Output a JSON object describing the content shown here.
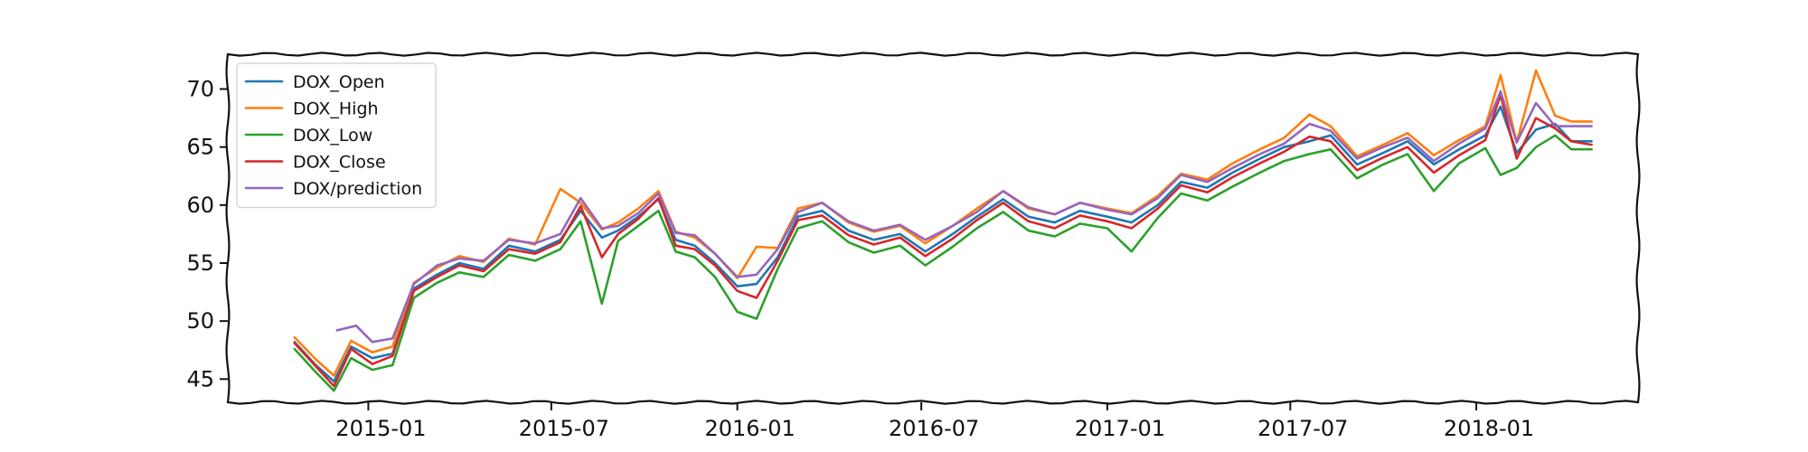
{
  "chart_data": {
    "type": "line",
    "title": "",
    "xlabel": "",
    "ylabel": "",
    "xlim": [
      "2014-08-15",
      "2018-06-10"
    ],
    "ylim": [
      43,
      73
    ],
    "grid": false,
    "legend_position": "top-left",
    "x_ticks": [
      "2015-01",
      "2015-07",
      "2016-01",
      "2016-07",
      "2017-01",
      "2017-07",
      "2018-01"
    ],
    "y_ticks": [
      45,
      50,
      55,
      60,
      65,
      70
    ],
    "series": [
      {
        "name": "DOX_Open",
        "color": "#1f77b4",
        "x": [
          "2014-10-20",
          "2014-11-10",
          "2014-11-28",
          "2014-12-15",
          "2015-01-05",
          "2015-01-25",
          "2015-02-15",
          "2015-03-10",
          "2015-04-01",
          "2015-04-25",
          "2015-05-20",
          "2015-06-15",
          "2015-07-10",
          "2015-07-30",
          "2015-08-20",
          "2015-09-05",
          "2015-09-25",
          "2015-10-15",
          "2015-11-01",
          "2015-11-20",
          "2015-12-10",
          "2016-01-01",
          "2016-01-20",
          "2016-02-10",
          "2016-03-01",
          "2016-03-25",
          "2016-04-20",
          "2016-05-15",
          "2016-06-10",
          "2016-07-05",
          "2016-08-01",
          "2016-08-25",
          "2016-09-20",
          "2016-10-15",
          "2016-11-10",
          "2016-12-05",
          "2017-01-01",
          "2017-01-25",
          "2017-02-20",
          "2017-03-15",
          "2017-04-10",
          "2017-05-05",
          "2017-06-01",
          "2017-06-25",
          "2017-07-20",
          "2017-08-10",
          "2017-09-05",
          "2017-10-01",
          "2017-10-25",
          "2017-11-20",
          "2017-12-15",
          "2018-01-10",
          "2018-01-25",
          "2018-02-10",
          "2018-03-01",
          "2018-03-20",
          "2018-04-05",
          "2018-04-25"
        ],
        "y": [
          48.2,
          46.2,
          44.8,
          47.8,
          46.8,
          47.2,
          52.8,
          54.0,
          55.0,
          54.5,
          56.5,
          56.0,
          57.0,
          59.5,
          57.2,
          57.8,
          59.0,
          60.5,
          57.0,
          56.5,
          55.0,
          53.0,
          53.2,
          55.5,
          59.0,
          59.5,
          57.8,
          57.0,
          57.5,
          56.0,
          57.5,
          59.0,
          60.5,
          59.0,
          58.5,
          59.5,
          59.0,
          58.5,
          60.0,
          62.0,
          61.5,
          62.8,
          64.0,
          65.0,
          65.5,
          66.0,
          63.5,
          64.5,
          65.5,
          63.5,
          64.8,
          66.0,
          68.5,
          64.5,
          66.5,
          67.0,
          65.5,
          65.5
        ]
      },
      {
        "name": "DOX_High",
        "color": "#ff7f0e",
        "x": [
          "2014-10-20",
          "2014-11-10",
          "2014-11-28",
          "2014-12-15",
          "2015-01-05",
          "2015-01-25",
          "2015-02-15",
          "2015-03-10",
          "2015-04-01",
          "2015-04-25",
          "2015-05-20",
          "2015-06-15",
          "2015-07-10",
          "2015-07-30",
          "2015-08-20",
          "2015-09-05",
          "2015-09-25",
          "2015-10-15",
          "2015-11-01",
          "2015-11-20",
          "2015-12-10",
          "2016-01-01",
          "2016-01-20",
          "2016-02-10",
          "2016-03-01",
          "2016-03-25",
          "2016-04-20",
          "2016-05-15",
          "2016-06-10",
          "2016-07-05",
          "2016-08-01",
          "2016-08-25",
          "2016-09-20",
          "2016-10-15",
          "2016-11-10",
          "2016-12-05",
          "2017-01-01",
          "2017-01-25",
          "2017-02-20",
          "2017-03-15",
          "2017-04-10",
          "2017-05-05",
          "2017-06-01",
          "2017-06-25",
          "2017-07-20",
          "2017-08-10",
          "2017-09-05",
          "2017-10-01",
          "2017-10-25",
          "2017-11-20",
          "2017-12-15",
          "2018-01-10",
          "2018-01-25",
          "2018-02-10",
          "2018-03-01",
          "2018-03-20",
          "2018-04-05",
          "2018-04-25"
        ],
        "y": [
          48.6,
          46.7,
          45.3,
          48.3,
          47.3,
          47.8,
          53.3,
          54.6,
          55.6,
          55.1,
          57.1,
          56.6,
          61.4,
          60.2,
          57.9,
          58.5,
          59.7,
          61.2,
          57.7,
          57.2,
          55.8,
          53.7,
          56.4,
          56.3,
          59.7,
          60.2,
          58.5,
          57.7,
          58.2,
          56.7,
          58.2,
          59.7,
          61.2,
          59.7,
          59.2,
          60.2,
          59.7,
          59.3,
          60.8,
          62.7,
          62.2,
          63.6,
          64.8,
          65.8,
          67.8,
          66.8,
          64.2,
          65.2,
          66.2,
          64.3,
          65.6,
          66.8,
          71.2,
          65.4,
          71.6,
          67.7,
          67.2,
          67.2
        ]
      },
      {
        "name": "DOX_Low",
        "color": "#2ca02c",
        "x": [
          "2014-10-20",
          "2014-11-10",
          "2014-11-28",
          "2014-12-15",
          "2015-01-05",
          "2015-01-25",
          "2015-02-15",
          "2015-03-10",
          "2015-04-01",
          "2015-04-25",
          "2015-05-20",
          "2015-06-15",
          "2015-07-10",
          "2015-07-30",
          "2015-08-20",
          "2015-09-05",
          "2015-09-25",
          "2015-10-15",
          "2015-11-01",
          "2015-11-20",
          "2015-12-10",
          "2016-01-01",
          "2016-01-20",
          "2016-02-10",
          "2016-03-01",
          "2016-03-25",
          "2016-04-20",
          "2016-05-15",
          "2016-06-10",
          "2016-07-05",
          "2016-08-01",
          "2016-08-25",
          "2016-09-20",
          "2016-10-15",
          "2016-11-10",
          "2016-12-05",
          "2017-01-01",
          "2017-01-25",
          "2017-02-20",
          "2017-03-15",
          "2017-04-10",
          "2017-05-05",
          "2017-06-01",
          "2017-06-25",
          "2017-07-20",
          "2017-08-10",
          "2017-09-05",
          "2017-10-01",
          "2017-10-25",
          "2017-11-20",
          "2017-12-15",
          "2018-01-10",
          "2018-01-25",
          "2018-02-10",
          "2018-03-01",
          "2018-03-20",
          "2018-04-05",
          "2018-04-25"
        ],
        "y": [
          47.6,
          45.6,
          44.0,
          46.8,
          45.8,
          46.2,
          52.0,
          53.3,
          54.2,
          53.8,
          55.7,
          55.2,
          56.2,
          58.6,
          51.5,
          56.9,
          58.2,
          59.5,
          56.0,
          55.5,
          53.8,
          50.8,
          50.2,
          54.5,
          58.0,
          58.6,
          56.8,
          55.9,
          56.5,
          54.8,
          56.4,
          58.0,
          59.4,
          57.8,
          57.3,
          58.4,
          58.0,
          56.0,
          58.9,
          61.0,
          60.4,
          61.6,
          62.8,
          63.8,
          64.4,
          64.8,
          62.3,
          63.5,
          64.4,
          61.2,
          63.6,
          64.9,
          62.6,
          63.2,
          65.0,
          66.0,
          64.8,
          64.8
        ]
      },
      {
        "name": "DOX_Close",
        "color": "#d62728",
        "x": [
          "2014-10-20",
          "2014-11-10",
          "2014-11-28",
          "2014-12-15",
          "2015-01-05",
          "2015-01-25",
          "2015-02-15",
          "2015-03-10",
          "2015-04-01",
          "2015-04-25",
          "2015-05-20",
          "2015-06-15",
          "2015-07-10",
          "2015-07-30",
          "2015-08-20",
          "2015-09-05",
          "2015-09-25",
          "2015-10-15",
          "2015-11-01",
          "2015-11-20",
          "2015-12-10",
          "2016-01-01",
          "2016-01-20",
          "2016-02-10",
          "2016-03-01",
          "2016-03-25",
          "2016-04-20",
          "2016-05-15",
          "2016-06-10",
          "2016-07-05",
          "2016-08-01",
          "2016-08-25",
          "2016-09-20",
          "2016-10-15",
          "2016-11-10",
          "2016-12-05",
          "2017-01-01",
          "2017-01-25",
          "2017-02-20",
          "2017-03-15",
          "2017-04-10",
          "2017-05-05",
          "2017-06-01",
          "2017-06-25",
          "2017-07-20",
          "2017-08-10",
          "2017-09-05",
          "2017-10-01",
          "2017-10-25",
          "2017-11-20",
          "2017-12-15",
          "2018-01-10",
          "2018-01-25",
          "2018-02-10",
          "2018-03-01",
          "2018-03-20",
          "2018-04-05",
          "2018-04-25"
        ],
        "y": [
          48.1,
          46.1,
          44.4,
          47.6,
          46.3,
          47.0,
          52.6,
          53.8,
          54.8,
          54.3,
          56.2,
          55.8,
          56.8,
          59.9,
          55.5,
          57.5,
          58.8,
          60.6,
          56.5,
          56.2,
          54.8,
          52.6,
          52.0,
          55.2,
          58.7,
          59.1,
          57.4,
          56.6,
          57.2,
          55.6,
          57.1,
          58.7,
          60.2,
          58.6,
          58.0,
          59.1,
          58.6,
          58.0,
          59.7,
          61.7,
          61.1,
          62.4,
          63.6,
          64.6,
          65.9,
          65.5,
          63.0,
          64.1,
          65.0,
          62.8,
          64.3,
          65.6,
          69.5,
          64.0,
          67.5,
          66.6,
          65.5,
          65.2
        ]
      },
      {
        "name": "DOX/prediction",
        "color": "#9467bd",
        "x": [
          "2014-12-01",
          "2014-12-20",
          "2015-01-05",
          "2015-01-25",
          "2015-02-15",
          "2015-03-10",
          "2015-04-01",
          "2015-04-25",
          "2015-05-20",
          "2015-06-15",
          "2015-07-10",
          "2015-07-30",
          "2015-08-20",
          "2015-09-05",
          "2015-09-25",
          "2015-10-15",
          "2015-11-01",
          "2015-11-20",
          "2015-12-10",
          "2016-01-01",
          "2016-01-20",
          "2016-02-10",
          "2016-03-01",
          "2016-03-25",
          "2016-04-20",
          "2016-05-15",
          "2016-06-10",
          "2016-07-05",
          "2016-08-01",
          "2016-08-25",
          "2016-09-20",
          "2016-10-15",
          "2016-11-10",
          "2016-12-05",
          "2017-01-01",
          "2017-01-25",
          "2017-02-20",
          "2017-03-15",
          "2017-04-10",
          "2017-05-05",
          "2017-06-01",
          "2017-06-25",
          "2017-07-20",
          "2017-08-10",
          "2017-09-05",
          "2017-10-01",
          "2017-10-25",
          "2017-11-20",
          "2017-12-15",
          "2018-01-10",
          "2018-01-25",
          "2018-02-10",
          "2018-03-01",
          "2018-03-20",
          "2018-04-05",
          "2018-04-25"
        ],
        "y": [
          49.2,
          49.6,
          48.2,
          48.5,
          53.2,
          54.8,
          55.4,
          55.2,
          57.0,
          56.7,
          57.5,
          60.6,
          58.0,
          58.2,
          59.3,
          61.0,
          57.6,
          57.4,
          55.8,
          53.8,
          54.0,
          56.2,
          59.4,
          60.2,
          58.6,
          57.8,
          58.3,
          57.0,
          58.2,
          59.4,
          61.2,
          59.8,
          59.2,
          60.2,
          59.6,
          59.2,
          60.6,
          62.6,
          62.0,
          63.2,
          64.4,
          65.3,
          67.0,
          66.4,
          64.0,
          65.0,
          65.8,
          63.8,
          65.3,
          66.6,
          69.8,
          65.4,
          68.8,
          66.8,
          66.8,
          66.8
        ]
      }
    ]
  }
}
